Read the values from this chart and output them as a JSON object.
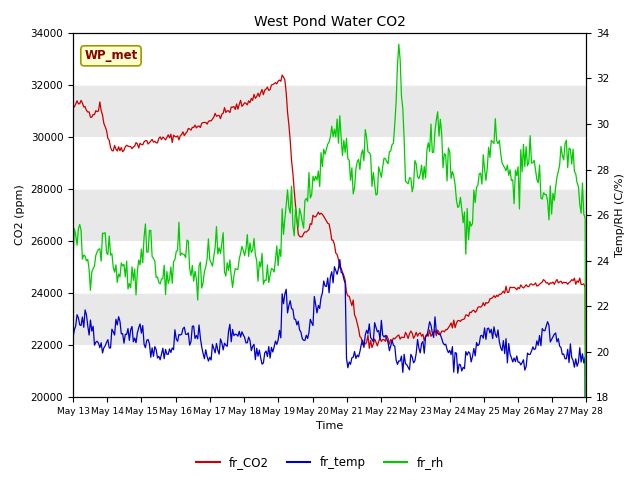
{
  "title": "West Pond Water CO2",
  "xlabel": "Time",
  "ylabel_left": "CO2 (ppm)",
  "ylabel_right": "Temp/RH (C/%)",
  "annotation": "WP_met",
  "ylim_left": [
    20000,
    34000
  ],
  "ylim_right": [
    18,
    34
  ],
  "yticks_left": [
    20000,
    22000,
    24000,
    26000,
    28000,
    30000,
    32000,
    34000
  ],
  "yticks_right": [
    18,
    20,
    22,
    24,
    26,
    28,
    30,
    32,
    34
  ],
  "xtick_labels": [
    "May 13",
    "May 14",
    "May 15",
    "May 16",
    "May 17",
    "May 18",
    "May 19",
    "May 20",
    "May 21",
    "May 22",
    "May 23",
    "May 24",
    "May 25",
    "May 26",
    "May 27",
    "May 28"
  ],
  "color_co2": "#cc0000",
  "color_temp": "#0000cc",
  "color_rh": "#00cc00",
  "bg_color": "#e8e8e8",
  "annotation_bg": "#ffffcc",
  "annotation_border": "#999900",
  "annotation_text_color": "#880000",
  "band_white": "#ffffff",
  "band_gray": "#e0e0e0"
}
